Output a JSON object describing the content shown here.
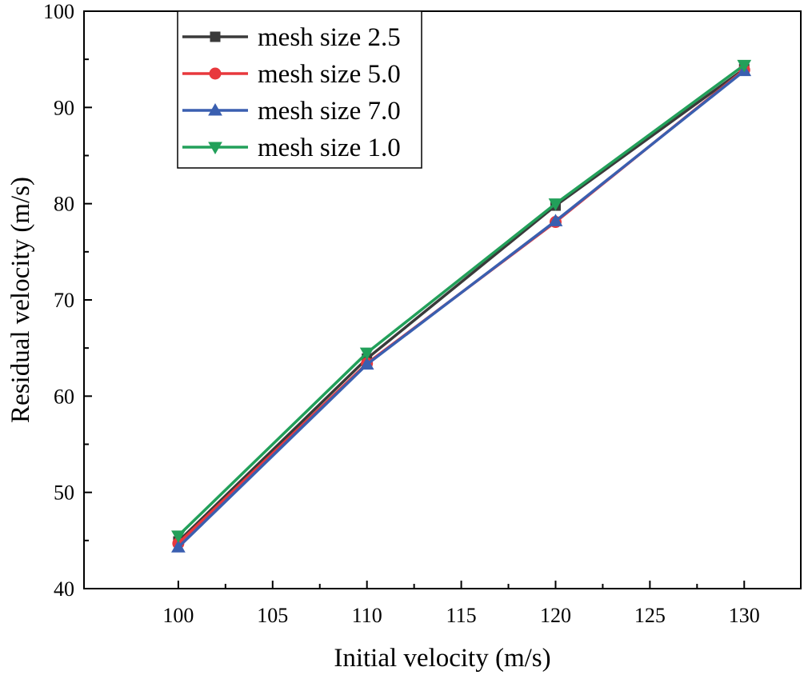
{
  "chart_data": {
    "type": "line",
    "title": "",
    "xlabel": "Initial velocity (m/s)",
    "ylabel": "Residual velocity (m/s)",
    "xlim": [
      95,
      133
    ],
    "ylim": [
      40,
      100
    ],
    "x_ticks": [
      100,
      105,
      110,
      115,
      120,
      125,
      130
    ],
    "y_ticks": [
      40,
      50,
      60,
      70,
      80,
      90,
      100
    ],
    "grid": false,
    "legend_position": "top-left",
    "x": [
      100,
      110,
      120,
      130
    ],
    "series": [
      {
        "name": "mesh size 2.5",
        "color": "#3a3a3a",
        "marker": "square",
        "values": [
          44.9,
          63.9,
          79.8,
          94.0
        ]
      },
      {
        "name": "mesh size 5.0",
        "color": "#e8383d",
        "marker": "circle",
        "values": [
          44.7,
          63.4,
          78.1,
          93.9
        ]
      },
      {
        "name": "mesh size 7.0",
        "color": "#3a5fb0",
        "marker": "triangle-up",
        "values": [
          44.3,
          63.3,
          78.2,
          93.8
        ]
      },
      {
        "name": "mesh size 1.0",
        "color": "#22a05a",
        "marker": "triangle-down",
        "values": [
          45.5,
          64.5,
          80.0,
          94.4
        ]
      }
    ]
  }
}
